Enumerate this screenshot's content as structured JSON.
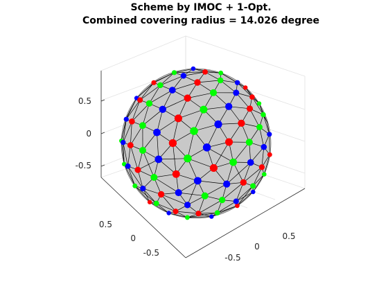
{
  "chart_data": {
    "type": "scatter",
    "projection": "3d",
    "title_line1": "Scheme by IMOC + 1-Opt.",
    "title_line2": "Combined covering radius = 14.026 degree",
    "xlabel": "",
    "ylabel": "",
    "zlabel": "",
    "xlim": [
      -1,
      1
    ],
    "ylim": [
      -1,
      1
    ],
    "zlim": [
      -1,
      1
    ],
    "z_ticks": [
      "0.5",
      "0",
      "-0.5"
    ],
    "x_ticks": [
      "0.5",
      "0",
      "-0.5"
    ],
    "y_ticks": [
      "0",
      "0.5",
      "-0.5"
    ],
    "grid": true,
    "legend": "none",
    "surface": "triangulated unit sphere",
    "surface_color": "#c8c8c8",
    "edge_color": "#000000",
    "series_colors": {
      "red": "#ff0000",
      "green": "#00ff00",
      "blue": "#0000ff"
    },
    "series": [
      {
        "color": "red",
        "count": 48
      },
      {
        "color": "green",
        "count": 48
      },
      {
        "color": "blue",
        "count": 48
      }
    ]
  }
}
